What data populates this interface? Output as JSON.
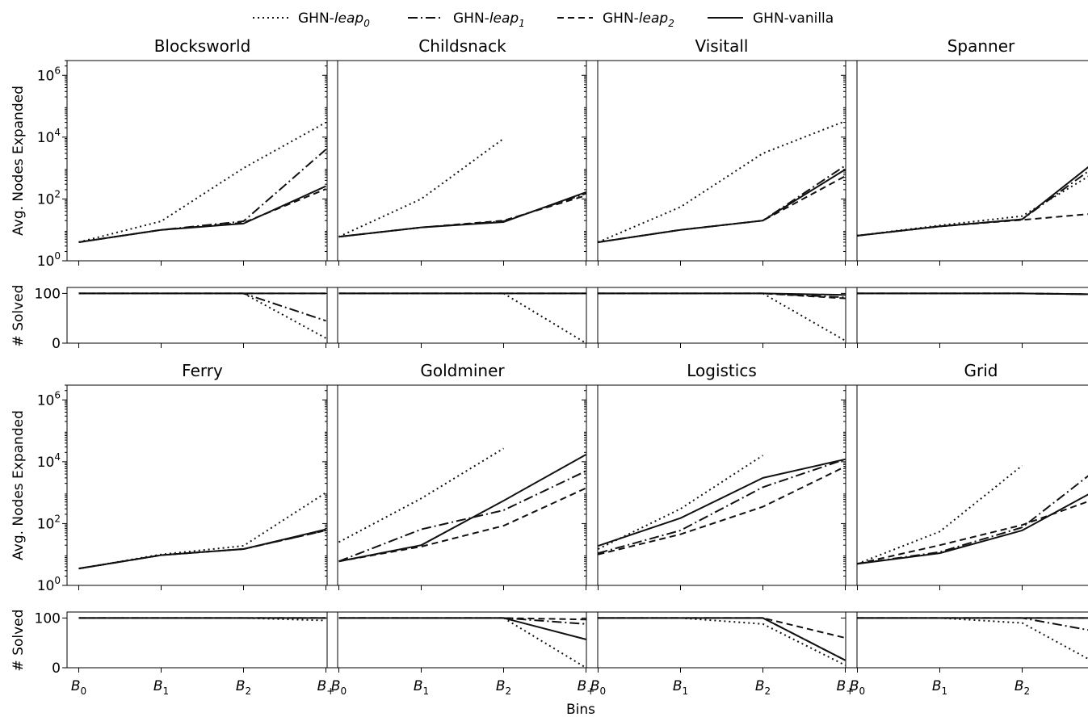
{
  "figure": {
    "xlabel": "Bins",
    "ylabel_top": "Avg. Nodes Expanded",
    "ylabel_bottom": "# Solved"
  },
  "legend": [
    {
      "key": "leap0",
      "prefix": "GHN-",
      "name": "leap",
      "sub": "0",
      "italic": true,
      "dash": "dotted"
    },
    {
      "key": "leap1",
      "prefix": "GHN-",
      "name": "leap",
      "sub": "1",
      "italic": true,
      "dash": "dashdot"
    },
    {
      "key": "leap2",
      "prefix": "GHN-",
      "name": "leap",
      "sub": "2",
      "italic": true,
      "dash": "dashed"
    },
    {
      "key": "vanilla",
      "prefix": "GHN-",
      "name": "vanilla",
      "sub": "",
      "italic": false,
      "dash": "solid"
    }
  ],
  "chart_data": [
    {
      "type": "line",
      "title": "Blocksworld",
      "categories": [
        "B0",
        "B1",
        "B2",
        "B+"
      ],
      "nodes": {
        "scale": "log",
        "ylim": [
          1,
          3000000
        ],
        "series": [
          {
            "key": "leap0",
            "values": [
              4,
              19,
              1000,
              30000
            ]
          },
          {
            "key": "leap1",
            "values": [
              4,
              10,
              19,
              4000
            ]
          },
          {
            "key": "leap2",
            "values": [
              4,
              10,
              17,
              210
            ]
          },
          {
            "key": "vanilla",
            "values": [
              4,
              10,
              16,
              260
            ]
          }
        ]
      },
      "solved": {
        "ylim": [
          0,
          112
        ],
        "series": [
          {
            "key": "leap0",
            "values": [
              100,
              100,
              100,
              10
            ]
          },
          {
            "key": "leap1",
            "values": [
              100,
              100,
              100,
              45
            ]
          },
          {
            "key": "leap2",
            "values": [
              100,
              100,
              100,
              100
            ]
          },
          {
            "key": "vanilla",
            "values": [
              100,
              100,
              100,
              100
            ]
          }
        ]
      }
    },
    {
      "type": "line",
      "title": "Childsnack",
      "categories": [
        "B0",
        "B1",
        "B2",
        "B+"
      ],
      "nodes": {
        "scale": "log",
        "ylim": [
          1,
          3000000
        ],
        "series": [
          {
            "key": "leap0",
            "values": [
              6,
              100,
              9000,
              null
            ]
          },
          {
            "key": "leap1",
            "values": [
              6,
              12,
              19,
              150
            ]
          },
          {
            "key": "leap2",
            "values": [
              6,
              12,
              20,
              130
            ]
          },
          {
            "key": "vanilla",
            "values": [
              6,
              12,
              18,
              165
            ]
          }
        ]
      },
      "solved": {
        "ylim": [
          0,
          112
        ],
        "series": [
          {
            "key": "leap0",
            "values": [
              100,
              100,
              100,
              0
            ]
          },
          {
            "key": "leap1",
            "values": [
              100,
              100,
              100,
              100
            ]
          },
          {
            "key": "leap2",
            "values": [
              100,
              100,
              100,
              100
            ]
          },
          {
            "key": "vanilla",
            "values": [
              100,
              100,
              100,
              100
            ]
          }
        ]
      }
    },
    {
      "type": "line",
      "title": "Visitall",
      "categories": [
        "B0",
        "B1",
        "B2",
        "B+"
      ],
      "nodes": {
        "scale": "log",
        "ylim": [
          1,
          3000000
        ],
        "series": [
          {
            "key": "leap0",
            "values": [
              4,
              55,
              3000,
              33000
            ]
          },
          {
            "key": "leap1",
            "values": [
              4,
              10,
              20,
              1200
            ]
          },
          {
            "key": "leap2",
            "values": [
              4,
              10,
              20,
              550
            ]
          },
          {
            "key": "vanilla",
            "values": [
              4,
              10,
              20,
              900
            ]
          }
        ]
      },
      "solved": {
        "ylim": [
          0,
          112
        ],
        "series": [
          {
            "key": "leap0",
            "values": [
              100,
              100,
              100,
              5
            ]
          },
          {
            "key": "leap1",
            "values": [
              100,
              100,
              100,
              92
            ]
          },
          {
            "key": "leap2",
            "values": [
              100,
              100,
              100,
              90
            ]
          },
          {
            "key": "vanilla",
            "values": [
              100,
              100,
              100,
              97
            ]
          }
        ]
      }
    },
    {
      "type": "line",
      "title": "Spanner",
      "categories": [
        "B0",
        "B1",
        "B2",
        "B+"
      ],
      "nodes": {
        "scale": "log",
        "ylim": [
          1,
          3000000
        ],
        "series": [
          {
            "key": "leap0",
            "values": [
              6.5,
              14,
              28,
              1100
            ]
          },
          {
            "key": "leap1",
            "values": [
              6.5,
              13,
              22,
              1900
            ]
          },
          {
            "key": "leap2",
            "values": [
              6.5,
              13,
              21,
              36
            ]
          },
          {
            "key": "vanilla",
            "values": [
              6.5,
              13,
              22,
              2800
            ]
          }
        ]
      },
      "solved": {
        "ylim": [
          0,
          112
        ],
        "series": [
          {
            "key": "leap0",
            "values": [
              100,
              100,
              100,
              98
            ]
          },
          {
            "key": "leap1",
            "values": [
              100,
              100,
              100,
              98
            ]
          },
          {
            "key": "leap2",
            "values": [
              100,
              100,
              100,
              98
            ]
          },
          {
            "key": "vanilla",
            "values": [
              100,
              100,
              100,
              98
            ]
          }
        ]
      }
    },
    {
      "type": "line",
      "title": "Ferry",
      "categories": [
        "B0",
        "B1",
        "B2",
        "B+"
      ],
      "nodes": {
        "scale": "log",
        "ylim": [
          1,
          3000000
        ],
        "series": [
          {
            "key": "leap0",
            "values": [
              3.5,
              10,
              19,
              1000
            ]
          },
          {
            "key": "leap1",
            "values": [
              3.5,
              9.5,
              15,
              60
            ]
          },
          {
            "key": "leap2",
            "values": [
              3.5,
              9.5,
              15,
              60
            ]
          },
          {
            "key": "vanilla",
            "values": [
              3.5,
              9.5,
              15,
              65
            ]
          }
        ]
      },
      "solved": {
        "ylim": [
          0,
          112
        ],
        "series": [
          {
            "key": "leap0",
            "values": [
              100,
              100,
              100,
              95
            ]
          },
          {
            "key": "leap1",
            "values": [
              100,
              100,
              100,
              100
            ]
          },
          {
            "key": "leap2",
            "values": [
              100,
              100,
              100,
              100
            ]
          },
          {
            "key": "vanilla",
            "values": [
              100,
              100,
              100,
              100
            ]
          }
        ]
      }
    },
    {
      "type": "line",
      "title": "Goldminer",
      "categories": [
        "B0",
        "B1",
        "B2",
        "B+"
      ],
      "nodes": {
        "scale": "log",
        "ylim": [
          1,
          3000000
        ],
        "series": [
          {
            "key": "leap0",
            "values": [
              25,
              650,
              27000,
              null
            ]
          },
          {
            "key": "leap1",
            "values": [
              6,
              65,
              270,
              5000
            ]
          },
          {
            "key": "leap2",
            "values": [
              6,
              18,
              85,
              1400
            ]
          },
          {
            "key": "vanilla",
            "values": [
              6,
              20,
              550,
              17000
            ]
          }
        ]
      },
      "solved": {
        "ylim": [
          0,
          112
        ],
        "series": [
          {
            "key": "leap0",
            "values": [
              100,
              100,
              100,
              0
            ]
          },
          {
            "key": "leap1",
            "values": [
              100,
              100,
              100,
              88
            ]
          },
          {
            "key": "leap2",
            "values": [
              100,
              100,
              100,
              97
            ]
          },
          {
            "key": "vanilla",
            "values": [
              100,
              100,
              100,
              57
            ]
          }
        ]
      }
    },
    {
      "type": "line",
      "title": "Logistics",
      "categories": [
        "B0",
        "B1",
        "B2",
        "B+"
      ],
      "nodes": {
        "scale": "log",
        "ylim": [
          1,
          3000000
        ],
        "series": [
          {
            "key": "leap0",
            "values": [
              15,
              300,
              16000,
              null
            ]
          },
          {
            "key": "leap1",
            "values": [
              11,
              60,
              1500,
              12000
            ]
          },
          {
            "key": "leap2",
            "values": [
              10,
              45,
              350,
              7000
            ]
          },
          {
            "key": "vanilla",
            "values": [
              19,
              150,
              3000,
              12000
            ]
          }
        ]
      },
      "solved": {
        "ylim": [
          0,
          112
        ],
        "series": [
          {
            "key": "leap0",
            "values": [
              100,
              100,
              88,
              5
            ]
          },
          {
            "key": "leap1",
            "values": [
              100,
              100,
              100,
              15
            ]
          },
          {
            "key": "leap2",
            "values": [
              100,
              100,
              100,
              60
            ]
          },
          {
            "key": "vanilla",
            "values": [
              100,
              100,
              100,
              15
            ]
          }
        ]
      }
    },
    {
      "type": "line",
      "title": "Grid",
      "categories": [
        "B0",
        "B1",
        "B2",
        "B+"
      ],
      "nodes": {
        "scale": "log",
        "ylim": [
          1,
          3000000
        ],
        "series": [
          {
            "key": "leap0",
            "values": [
              5,
              55,
              7500,
              null
            ]
          },
          {
            "key": "leap1",
            "values": [
              5,
              12,
              75,
              9000
            ]
          },
          {
            "key": "leap2",
            "values": [
              5,
              20,
              90,
              800
            ]
          },
          {
            "key": "vanilla",
            "values": [
              5,
              11,
              60,
              1700
            ]
          }
        ]
      },
      "solved": {
        "ylim": [
          0,
          112
        ],
        "series": [
          {
            "key": "leap0",
            "values": [
              100,
              100,
              90,
              0
            ]
          },
          {
            "key": "leap1",
            "values": [
              100,
              100,
              100,
              70
            ]
          },
          {
            "key": "leap2",
            "values": [
              100,
              100,
              100,
              100
            ]
          },
          {
            "key": "vanilla",
            "values": [
              100,
              100,
              100,
              100
            ]
          }
        ]
      }
    }
  ]
}
